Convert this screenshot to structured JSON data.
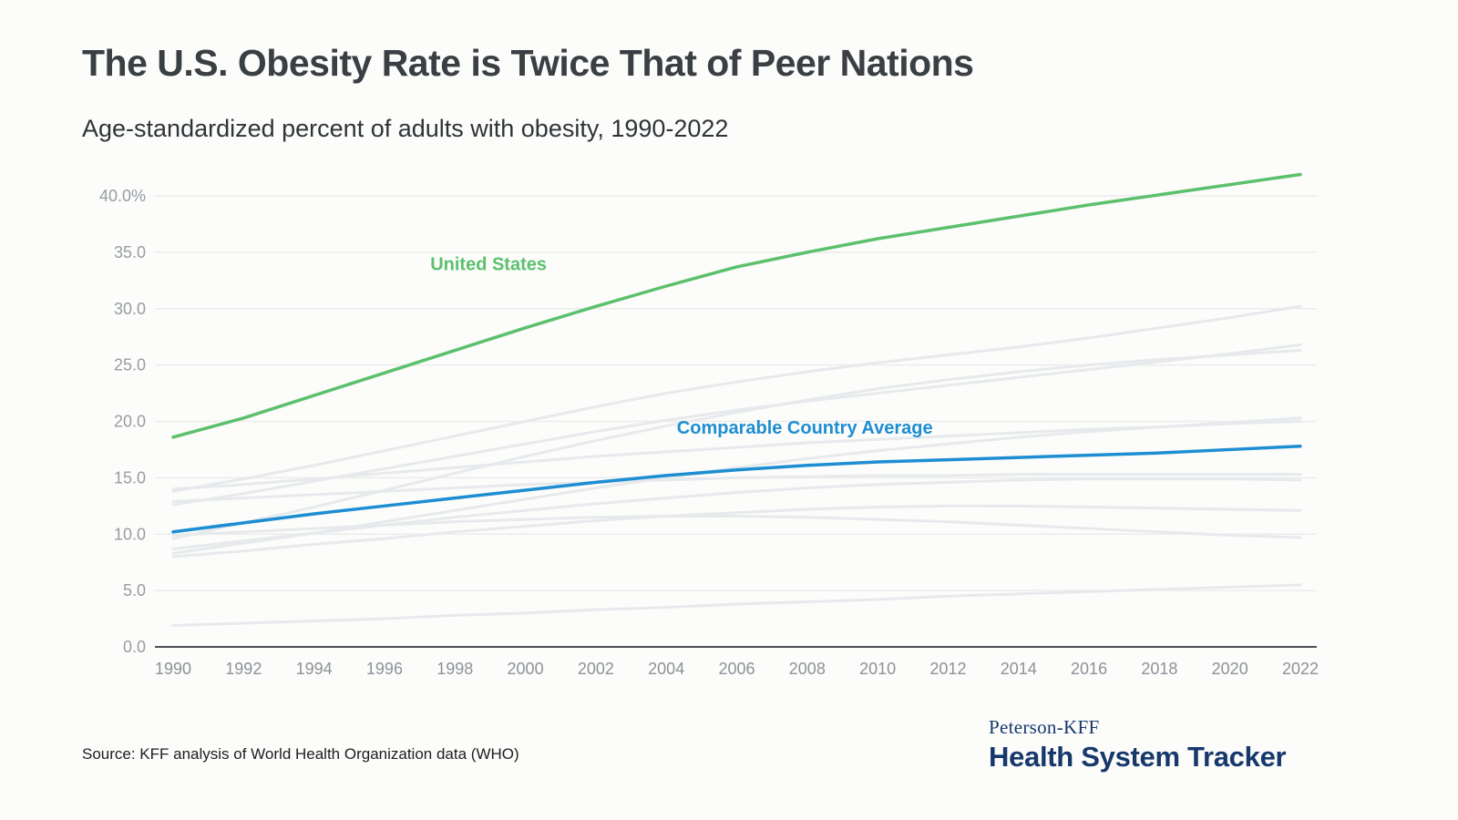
{
  "header": {
    "title": "The U.S. Obesity Rate is Twice That of Peer Nations",
    "subtitle": "Age-standardized percent of adults with obesity, 1990-2022"
  },
  "footer": {
    "source": "Source: KFF analysis of World Health Organization data (WHO)",
    "logo_top": "Peterson-KFF",
    "logo_bottom": "Health System Tracker"
  },
  "colors": {
    "us_green": "#5cc06c",
    "avg_blue": "#1e8ed2",
    "peer_gray": "#e7eaec",
    "axis_dark": "#4a4f54",
    "grid": "#ececec",
    "tick_text": "#979da3",
    "navy": "#16386b"
  },
  "chart_data": {
    "type": "line",
    "title": "Age-standardized percent of adults with obesity, 1990-2022",
    "xlabel": "",
    "ylabel": "Percent of adults with obesity",
    "x": [
      1990,
      1992,
      1994,
      1996,
      1998,
      2000,
      2002,
      2004,
      2006,
      2008,
      2010,
      2012,
      2014,
      2016,
      2018,
      2020,
      2022
    ],
    "ylim": [
      0,
      44
    ],
    "yticks": [
      0,
      5,
      10,
      15,
      20,
      25,
      30,
      35,
      40
    ],
    "ytick_labels": [
      "0.0",
      "5.0",
      "10.0",
      "15.0",
      "20.0",
      "25.0",
      "30.0",
      "35.0",
      "40.0%"
    ],
    "grid": true,
    "legend_position": "inline-annotations",
    "series": [
      {
        "name": "peer-country-1",
        "role": "background",
        "color": "#e7eaec",
        "width": 3,
        "values": [
          13.8,
          14.9,
          16.1,
          17.4,
          18.7,
          20.0,
          21.3,
          22.5,
          23.5,
          24.4,
          25.2,
          25.9,
          26.6,
          27.4,
          28.3,
          29.2,
          30.2
        ]
      },
      {
        "name": "peer-country-2",
        "role": "background",
        "color": "#e7eaec",
        "width": 3,
        "values": [
          12.6,
          13.6,
          14.7,
          15.8,
          16.9,
          18.0,
          19.1,
          20.1,
          21.0,
          21.8,
          22.5,
          23.2,
          23.9,
          24.6,
          25.3,
          26.0,
          26.8
        ]
      },
      {
        "name": "peer-country-3",
        "role": "background",
        "color": "#e7eaec",
        "width": 3,
        "values": [
          9.6,
          11.0,
          12.4,
          13.9,
          15.4,
          16.9,
          18.3,
          19.6,
          20.8,
          21.9,
          22.9,
          23.7,
          24.4,
          25.0,
          25.5,
          25.9,
          26.3
        ]
      },
      {
        "name": "peer-country-4",
        "role": "background",
        "color": "#e7eaec",
        "width": 3,
        "values": [
          8.3,
          9.2,
          10.1,
          11.1,
          12.1,
          13.1,
          14.1,
          15.0,
          15.9,
          16.7,
          17.4,
          18.0,
          18.6,
          19.1,
          19.5,
          19.9,
          20.3
        ]
      },
      {
        "name": "peer-country-5",
        "role": "background",
        "color": "#e7eaec",
        "width": 3,
        "values": [
          14.0,
          14.4,
          14.9,
          15.4,
          15.9,
          16.4,
          16.9,
          17.3,
          17.7,
          18.1,
          18.4,
          18.7,
          19.0,
          19.3,
          19.5,
          19.8,
          20.0
        ]
      },
      {
        "name": "peer-country-6",
        "role": "background",
        "color": "#e7eaec",
        "width": 3,
        "values": [
          12.9,
          13.2,
          13.5,
          13.8,
          14.1,
          14.4,
          14.6,
          14.8,
          15.0,
          15.1,
          15.2,
          15.2,
          15.3,
          15.3,
          15.3,
          15.3,
          15.3
        ]
      },
      {
        "name": "peer-country-7",
        "role": "background",
        "color": "#e7eaec",
        "width": 3,
        "values": [
          8.7,
          9.4,
          10.1,
          10.8,
          11.5,
          12.1,
          12.7,
          13.2,
          13.7,
          14.1,
          14.4,
          14.6,
          14.8,
          14.9,
          14.9,
          14.9,
          14.8
        ]
      },
      {
        "name": "peer-country-8",
        "role": "background",
        "color": "#e7eaec",
        "width": 3,
        "values": [
          8.0,
          8.5,
          9.1,
          9.6,
          10.2,
          10.7,
          11.2,
          11.6,
          11.9,
          12.2,
          12.4,
          12.5,
          12.5,
          12.4,
          12.3,
          12.2,
          12.1
        ]
      },
      {
        "name": "peer-country-9",
        "role": "background",
        "color": "#e7eaec",
        "width": 3,
        "values": [
          9.9,
          10.2,
          10.5,
          10.8,
          11.1,
          11.3,
          11.5,
          11.6,
          11.6,
          11.5,
          11.3,
          11.1,
          10.8,
          10.5,
          10.2,
          9.9,
          9.7
        ]
      },
      {
        "name": "peer-country-10",
        "role": "background",
        "color": "#e7eaec",
        "width": 3,
        "values": [
          1.9,
          2.1,
          2.3,
          2.5,
          2.8,
          3.0,
          3.3,
          3.5,
          3.8,
          4.0,
          4.2,
          4.5,
          4.7,
          4.9,
          5.1,
          5.3,
          5.5
        ]
      },
      {
        "name": "Comparable Country Average",
        "role": "main",
        "color": "#1e8ed2",
        "width": 3.5,
        "values": [
          10.2,
          11.0,
          11.8,
          12.5,
          13.2,
          13.9,
          14.6,
          15.2,
          15.7,
          16.1,
          16.4,
          16.6,
          16.8,
          17.0,
          17.2,
          17.5,
          17.8
        ]
      },
      {
        "name": "United States",
        "role": "main",
        "color": "#5cc06c",
        "width": 3.5,
        "values": [
          18.6,
          20.3,
          22.3,
          24.3,
          26.3,
          28.3,
          30.2,
          32.0,
          33.7,
          35.0,
          36.2,
          37.2,
          38.2,
          39.2,
          40.1,
          41.0,
          41.9
        ]
      }
    ],
    "annotations": [
      {
        "text": "United States",
        "x": 1997.3,
        "y": 33.4,
        "color": "#5cc06c"
      },
      {
        "text": "Comparable Country Average",
        "x": 2004.3,
        "y": 18.9,
        "color": "#1e8ed2"
      }
    ]
  }
}
